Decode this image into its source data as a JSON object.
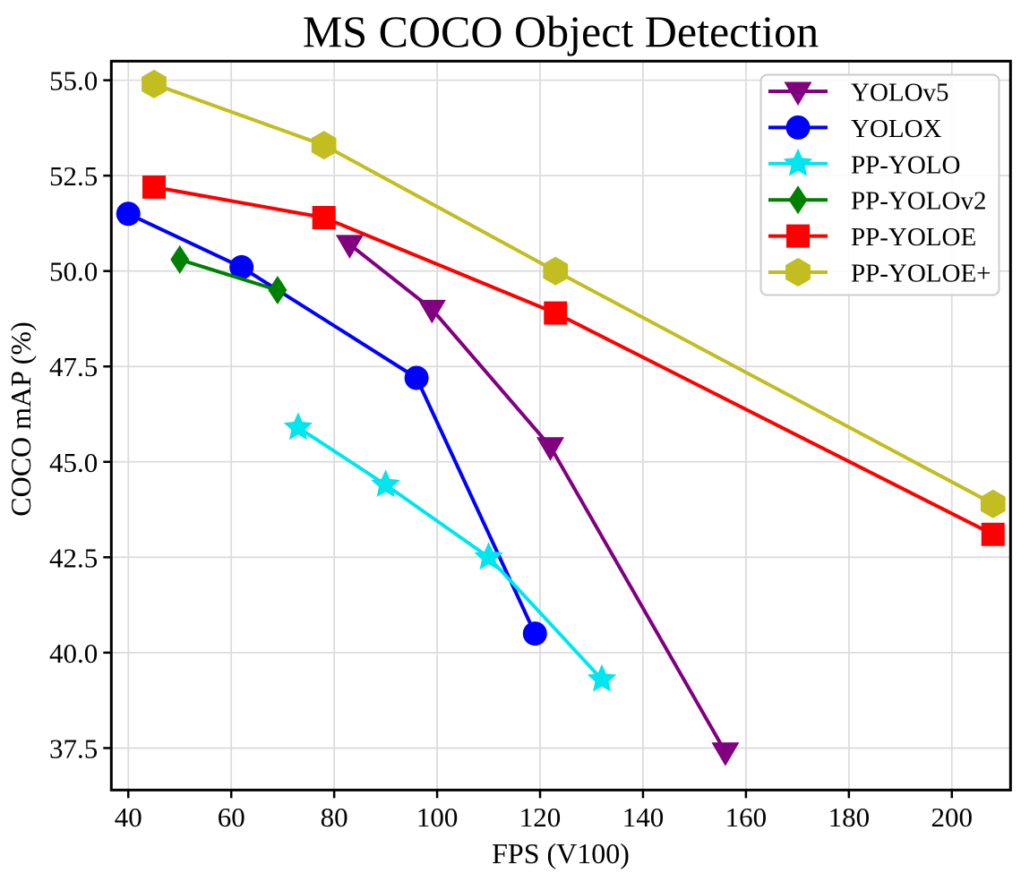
{
  "chart_data": {
    "type": "line",
    "title": "MS COCO Object Detection",
    "xlabel": "FPS (V100)",
    "ylabel": "COCO mAP (%)",
    "xlim": [
      36.7,
      211.4
    ],
    "ylim": [
      36.4,
      55.5
    ],
    "xticks": [
      40,
      60,
      80,
      100,
      120,
      140,
      160,
      180,
      200
    ],
    "yticks": [
      37.5,
      40.0,
      42.5,
      45.0,
      47.5,
      50.0,
      52.5,
      55.0
    ],
    "grid": true,
    "grid_color": "#dcdcdc",
    "legend_position": "upper right",
    "series": [
      {
        "name": "YOLOv5",
        "color": "#800080",
        "marker": "triangle-down",
        "points": [
          [
            83,
            50.7
          ],
          [
            99,
            49.0
          ],
          [
            122,
            45.4
          ],
          [
            156,
            37.4
          ]
        ]
      },
      {
        "name": "YOLOX",
        "color": "#0000ff",
        "marker": "circle",
        "points": [
          [
            40,
            51.5
          ],
          [
            62,
            50.1
          ],
          [
            96,
            47.2
          ],
          [
            119,
            40.5
          ]
        ]
      },
      {
        "name": "PP-YOLO",
        "color": "#00e5ee",
        "marker": "star",
        "points": [
          [
            73,
            45.9
          ],
          [
            90,
            44.4
          ],
          [
            110,
            42.5
          ],
          [
            132,
            39.3
          ]
        ]
      },
      {
        "name": "PP-YOLOv2",
        "color": "#008000",
        "marker": "diamond",
        "points": [
          [
            50,
            50.3
          ],
          [
            69,
            49.5
          ]
        ]
      },
      {
        "name": "PP-YOLOE",
        "color": "#ff0000",
        "marker": "square",
        "points": [
          [
            45,
            52.2
          ],
          [
            78,
            51.4
          ],
          [
            123,
            48.9
          ],
          [
            208,
            43.1
          ]
        ]
      },
      {
        "name": "PP-YOLOE+",
        "color": "#c2bd20",
        "marker": "hexagon",
        "points": [
          [
            45,
            54.9
          ],
          [
            78,
            53.3
          ],
          [
            123,
            50.0
          ],
          [
            208,
            43.9
          ]
        ]
      }
    ]
  }
}
